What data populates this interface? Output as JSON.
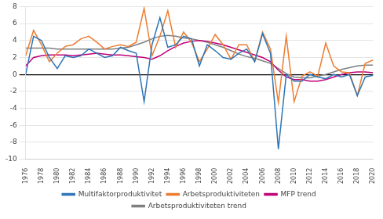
{
  "chart_data": {
    "type": "line",
    "x": [
      1976,
      1977,
      1978,
      1979,
      1980,
      1981,
      1982,
      1983,
      1984,
      1985,
      1986,
      1987,
      1988,
      1989,
      1990,
      1991,
      1992,
      1993,
      1994,
      1995,
      1996,
      1997,
      1998,
      1999,
      2000,
      2001,
      2002,
      2003,
      2004,
      2005,
      2006,
      2007,
      2008,
      2009,
      2010,
      2011,
      2012,
      2013,
      2014,
      2015,
      2016,
      2017,
      2018,
      2019,
      2020
    ],
    "series": [
      {
        "name": "Multifaktorproduktivitet",
        "color": "#2e75b6",
        "values": [
          0.0,
          4.5,
          4.0,
          2.0,
          0.7,
          2.2,
          2.0,
          2.2,
          3.0,
          2.5,
          2.0,
          2.2,
          3.2,
          2.8,
          2.5,
          -3.2,
          3.5,
          6.7,
          3.2,
          3.5,
          4.5,
          4.2,
          1.0,
          3.5,
          2.8,
          2.0,
          1.8,
          2.5,
          3.0,
          1.5,
          4.8,
          2.5,
          -8.8,
          0.0,
          -0.8,
          -0.8,
          0.0,
          -0.3,
          -0.5,
          0.0,
          -0.3,
          0.0,
          -2.5,
          -0.3,
          -0.1
        ]
      },
      {
        "name": "Arbetsproduktiviteten",
        "color": "#ed7d31",
        "values": [
          2.2,
          5.2,
          3.5,
          1.5,
          2.5,
          3.3,
          3.5,
          4.2,
          4.5,
          3.8,
          3.0,
          3.3,
          3.5,
          3.3,
          3.8,
          7.8,
          2.2,
          4.5,
          7.5,
          3.2,
          5.0,
          3.8,
          1.5,
          3.0,
          4.7,
          3.5,
          1.8,
          3.5,
          3.5,
          1.5,
          5.0,
          3.0,
          -3.3,
          4.5,
          -3.2,
          -0.2,
          0.3,
          -0.2,
          3.7,
          1.0,
          0.3,
          0.2,
          -2.5,
          1.3,
          1.7
        ]
      },
      {
        "name": "MFP trend",
        "color": "#c00078",
        "values": [
          1.0,
          2.0,
          2.2,
          2.3,
          2.3,
          2.3,
          2.2,
          2.3,
          2.4,
          2.5,
          2.4,
          2.3,
          2.3,
          2.2,
          2.1,
          2.0,
          1.8,
          2.2,
          2.8,
          3.3,
          3.7,
          3.9,
          4.0,
          3.9,
          3.7,
          3.5,
          3.2,
          2.9,
          2.6,
          2.3,
          2.0,
          1.5,
          0.5,
          -0.3,
          -0.6,
          -0.6,
          -0.8,
          -0.8,
          -0.6,
          -0.3,
          0.0,
          0.2,
          0.3,
          0.3,
          0.2
        ]
      },
      {
        "name": "Arbetsproduktiviteten trend",
        "color": "#7f7f7f",
        "values": [
          3.1,
          3.1,
          3.1,
          3.1,
          3.0,
          3.0,
          3.0,
          3.0,
          3.0,
          3.0,
          3.0,
          3.0,
          3.1,
          3.2,
          3.5,
          3.8,
          4.2,
          4.5,
          4.6,
          4.5,
          4.3,
          4.2,
          4.0,
          3.8,
          3.5,
          3.2,
          2.8,
          2.4,
          2.1,
          1.9,
          1.6,
          1.3,
          0.7,
          0.1,
          -0.3,
          -0.4,
          -0.4,
          -0.2,
          0.0,
          0.3,
          0.6,
          0.8,
          1.0,
          1.1,
          1.1
        ]
      }
    ],
    "xlim": [
      1976,
      2020
    ],
    "xticks": [
      1976,
      1978,
      1980,
      1982,
      1984,
      1986,
      1988,
      1990,
      1992,
      1994,
      1996,
      1998,
      2000,
      2002,
      2004,
      2006,
      2008,
      2010,
      2012,
      2014,
      2016,
      2018,
      2020
    ],
    "ylim": [
      -10,
      8
    ],
    "yticks": [
      -10,
      -8,
      -6,
      -4,
      -2,
      0,
      2,
      4,
      6,
      8
    ],
    "grid": "y",
    "legend": "bottom"
  }
}
